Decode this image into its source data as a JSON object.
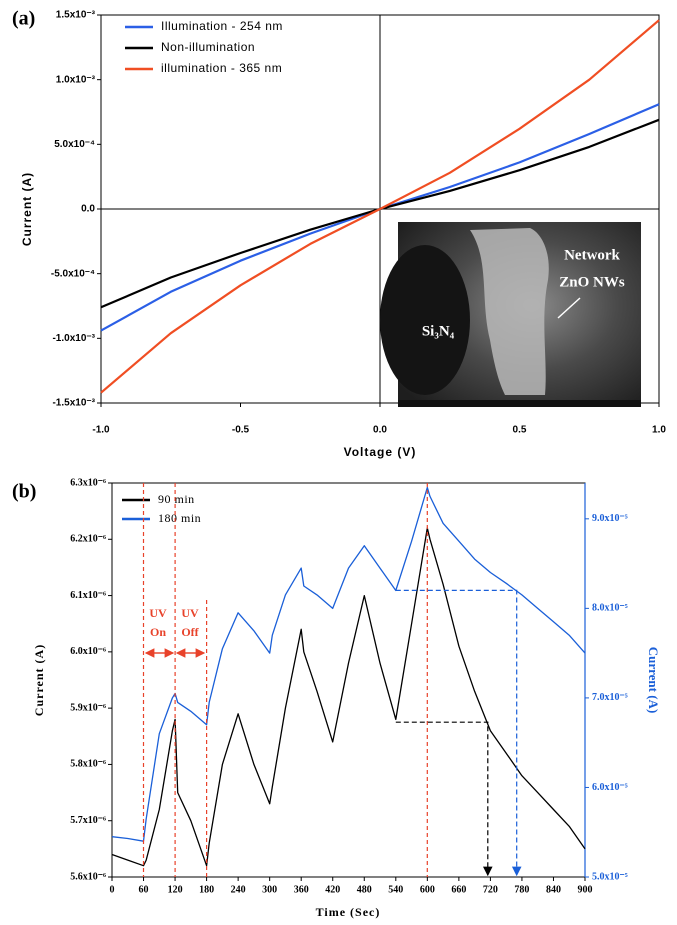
{
  "chart_data": [
    {
      "type": "line",
      "panel_label": "(a)",
      "xlabel": "Voltage (V)",
      "ylabel": "Current (A)",
      "x": [
        -1,
        -0.75,
        -0.5,
        -0.25,
        0,
        0.25,
        0.5,
        0.75,
        1
      ],
      "xlim": [
        -1,
        1
      ],
      "xticks": [
        {
          "value": -1,
          "label": "-1.0"
        },
        {
          "value": -0.5,
          "label": "-0.5"
        },
        {
          "value": 0,
          "label": "0.0"
        },
        {
          "value": 0.5,
          "label": "0.5"
        },
        {
          "value": 1,
          "label": "1.0"
        }
      ],
      "ylim": [
        -0.0015,
        0.0015
      ],
      "yticks": [
        {
          "value": -0.0015,
          "label": "-1.5x10⁻³"
        },
        {
          "value": -0.001,
          "label": "-1.0x10⁻³"
        },
        {
          "value": -0.0005,
          "label": "-5.0x10⁻⁴"
        },
        {
          "value": 0,
          "label": "0.0"
        },
        {
          "value": 0.0005,
          "label": "5.0x10⁻⁴"
        },
        {
          "value": 0.001,
          "label": "1.0x10⁻³"
        },
        {
          "value": 0.0015,
          "label": "1.5x10⁻³"
        }
      ],
      "series": [
        {
          "name": "Illumination - 254 nm",
          "color": "#2b5fe6",
          "values": [
            -0.00094,
            -0.00064,
            -0.0004,
            -0.00019,
            0,
            0.00017,
            0.00036,
            0.00058,
            0.00081
          ]
        },
        {
          "name": "Non-illumination",
          "color": "#000000",
          "values": [
            -0.00076,
            -0.00053,
            -0.00034,
            -0.00016,
            0,
            0.00014,
            0.0003,
            0.00048,
            0.00069
          ]
        },
        {
          "name": "illumination - 365 nm",
          "color": "#f04e23",
          "values": [
            -0.00142,
            -0.00096,
            -0.00059,
            -0.00027,
            0,
            0.00028,
            0.00062,
            0.001,
            0.00146
          ]
        }
      ],
      "inset_labels": [
        "Network",
        "ZnO NWs",
        "Si₃N₄"
      ]
    },
    {
      "type": "line",
      "panel_label": "(b)",
      "xlabel": "Time (Sec)",
      "ylabel": "Current (A)",
      "y2label": "Current (A)",
      "x": [
        0,
        30,
        60,
        65,
        90,
        115,
        120,
        125,
        150,
        180,
        185,
        210,
        240,
        270,
        300,
        305,
        330,
        360,
        365,
        390,
        420,
        450,
        480,
        510,
        540,
        570,
        600,
        605,
        630,
        660,
        690,
        720,
        750,
        780,
        810,
        840,
        870,
        900
      ],
      "xlim": [
        0,
        900
      ],
      "xticks": [
        0,
        60,
        120,
        180,
        240,
        300,
        360,
        420,
        480,
        540,
        600,
        660,
        720,
        780,
        840,
        900
      ],
      "ylim": [
        5.6e-06,
        6.3e-06
      ],
      "yticks": [
        {
          "value": 5.6e-06,
          "label": "5.6x10⁻⁶"
        },
        {
          "value": 5.7e-06,
          "label": "5.7x10⁻⁶"
        },
        {
          "value": 5.8e-06,
          "label": "5.8x10⁻⁶"
        },
        {
          "value": 5.9e-06,
          "label": "5.9x10⁻⁶"
        },
        {
          "value": 6e-06,
          "label": "6.0x10⁻⁶"
        },
        {
          "value": 6.1e-06,
          "label": "6.1x10⁻⁶"
        },
        {
          "value": 6.2e-06,
          "label": "6.2x10⁻⁶"
        },
        {
          "value": 6.3e-06,
          "label": "6.3x10⁻⁶"
        }
      ],
      "y2lim": [
        5e-05,
        9.4e-05
      ],
      "y2ticks": [
        {
          "value": 5e-05,
          "label": "5.0x10⁻⁵"
        },
        {
          "value": 6e-05,
          "label": "6.0x10⁻⁵"
        },
        {
          "value": 7e-05,
          "label": "7.0x10⁻⁵"
        },
        {
          "value": 8e-05,
          "label": "8.0x10⁻⁵"
        },
        {
          "value": 9e-05,
          "label": "9.0x10⁻⁵"
        }
      ],
      "y2color": "#1a5fd8",
      "series": [
        {
          "name": "90 min",
          "color": "#000000",
          "values": [
            5.64e-06,
            5.63e-06,
            5.62e-06,
            5.63e-06,
            5.72e-06,
            5.86e-06,
            5.88e-06,
            5.75e-06,
            5.7e-06,
            5.62e-06,
            5.66e-06,
            5.8e-06,
            5.89e-06,
            5.8e-06,
            5.73e-06,
            5.76e-06,
            5.9e-06,
            6.04e-06,
            6e-06,
            5.93e-06,
            5.84e-06,
            5.98e-06,
            6.1e-06,
            5.98e-06,
            5.88e-06,
            6.05e-06,
            6.22e-06,
            6.2e-06,
            6.12e-06,
            6.01e-06,
            5.93e-06,
            5.86e-06,
            5.82e-06,
            5.78e-06,
            5.75e-06,
            5.72e-06,
            5.69e-06,
            5.65e-06
          ]
        },
        {
          "name": "180 min",
          "color": "#1a5fd8",
          "axis": "y2",
          "values": [
            5.45e-05,
            5.43e-05,
            5.4e-05,
            5.65e-05,
            6.6e-05,
            7e-05,
            7.05e-05,
            6.95e-05,
            6.85e-05,
            6.7e-05,
            6.95e-05,
            7.55e-05,
            7.95e-05,
            7.75e-05,
            7.5e-05,
            7.7e-05,
            8.15e-05,
            8.45e-05,
            8.25e-05,
            8.15e-05,
            8e-05,
            8.45e-05,
            8.7e-05,
            8.45e-05,
            8.2e-05,
            8.75e-05,
            9.35e-05,
            9.25e-05,
            8.95e-05,
            8.75e-05,
            8.55e-05,
            8.4e-05,
            8.28e-05,
            8.15e-05,
            8e-05,
            7.85e-05,
            7.7e-05,
            7.5e-05
          ]
        }
      ],
      "annotations": [
        [
          "UV",
          "On"
        ],
        [
          "UV",
          "Off"
        ]
      ]
    }
  ]
}
